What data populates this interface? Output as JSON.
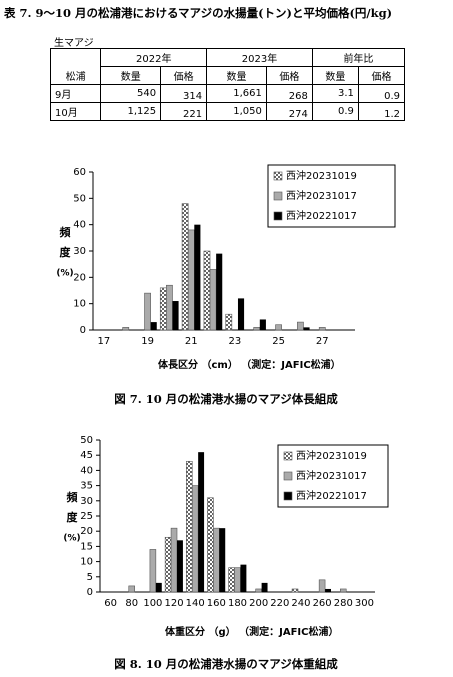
{
  "table": {
    "title": "表 7. 9～10 月の松浦港におけるマアジの水揚量(トン)と平均価格(円/kg)",
    "caption": "生マアジ",
    "header": {
      "groups": [
        "2022年",
        "2023年",
        "前年比"
      ],
      "row_label": "松浦",
      "columns": [
        "数量",
        "価格",
        "数量",
        "価格",
        "数量",
        "価格"
      ]
    },
    "rows": [
      {
        "label": "9月",
        "cells": [
          "540",
          "314",
          "1,661",
          "268",
          "3.1",
          "0.9"
        ]
      },
      {
        "label": "10月",
        "cells": [
          "1,125",
          "221",
          "1,050",
          "274",
          "0.9",
          "1.2"
        ]
      }
    ]
  },
  "chart_data": [
    {
      "type": "bar",
      "caption": "図 7. 10 月の松浦港水揚のマアジ体長組成",
      "xlabel": "体長区分 （cm） （測定：JAFIC松浦）",
      "ylabel": [
        "頻",
        "度",
        "(%)"
      ],
      "categories": [
        "17",
        null,
        "19",
        null,
        "21",
        null,
        "23",
        null,
        "25",
        null,
        "27",
        null
      ],
      "series": [
        {
          "name": "西沖20231019",
          "color": "#ffffff",
          "pattern": "check",
          "values": [
            0,
            0,
            0,
            16,
            48,
            30,
            6,
            0,
            0,
            0,
            0,
            0
          ]
        },
        {
          "name": "西沖20231017",
          "color": "#aaaaaa",
          "values": [
            0,
            1,
            14,
            17,
            38,
            23,
            0,
            1,
            2,
            3,
            1,
            0
          ]
        },
        {
          "name": "西沖20221017",
          "color": "#000000",
          "values": [
            0,
            0,
            3,
            11,
            40,
            29,
            12,
            4,
            0,
            1,
            0,
            0
          ]
        }
      ],
      "ylim": [
        0,
        60
      ],
      "yticks": [
        0,
        10,
        20,
        30,
        40,
        50,
        60
      ],
      "legend": "upper right",
      "grid": false
    },
    {
      "type": "bar",
      "caption": "図 8. 10 月の松浦港水揚のマアジ体重組成",
      "xlabel": "体重区分 （g） （測定：JAFIC松浦）",
      "ylabel": [
        "頻",
        "度",
        "(%)"
      ],
      "categories": [
        "60",
        "80",
        "100",
        "120",
        "140",
        "160",
        "180",
        "200",
        "220",
        "240",
        "260",
        "280",
        "300"
      ],
      "series": [
        {
          "name": "西沖20231019",
          "color": "#ffffff",
          "pattern": "check",
          "values": [
            0,
            0,
            0,
            18,
            43,
            31,
            8,
            0,
            0,
            1,
            0,
            0,
            0
          ]
        },
        {
          "name": "西沖20231017",
          "color": "#aaaaaa",
          "values": [
            0,
            2,
            14,
            21,
            35,
            21,
            8,
            1,
            0,
            0,
            4,
            1,
            0
          ]
        },
        {
          "name": "西沖20221017",
          "color": "#000000",
          "values": [
            0,
            0,
            3,
            17,
            46,
            21,
            9,
            3,
            0,
            0,
            1,
            0,
            0
          ]
        }
      ],
      "ylim": [
        0,
        50
      ],
      "yticks": [
        0,
        5,
        10,
        15,
        20,
        25,
        30,
        35,
        40,
        45,
        50
      ],
      "legend": "upper right",
      "grid": false
    }
  ]
}
